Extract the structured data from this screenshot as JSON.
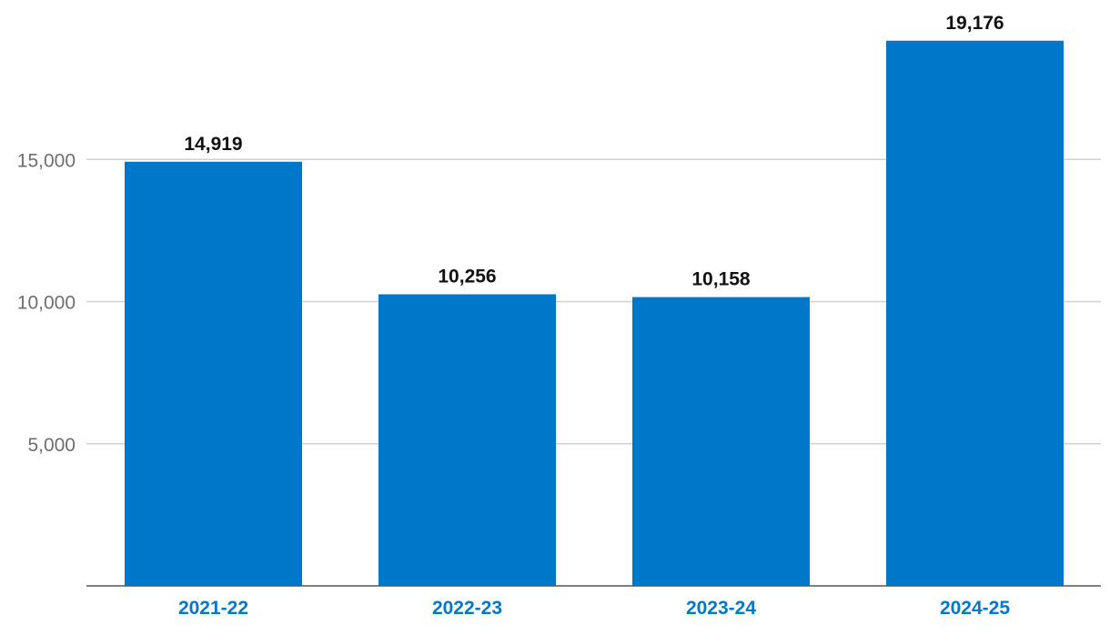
{
  "chart_data": {
    "type": "bar",
    "title": "",
    "xlabel": "",
    "ylabel": "",
    "categories": [
      "2021-22",
      "2022-23",
      "2023-24",
      "2024-25"
    ],
    "values": [
      14919,
      10256,
      10158,
      19176
    ],
    "value_labels": [
      "14,919",
      "10,256",
      "10,158",
      "19,176"
    ],
    "yticks": [
      5000,
      10000,
      15000
    ],
    "ytick_labels": [
      "5,000",
      "10,000",
      "15,000"
    ],
    "ylim": [
      0,
      20000
    ],
    "grid": true,
    "legend": "none"
  },
  "colors": {
    "bar": "#0077c8",
    "category_label": "#0077c8",
    "value_label": "#111111",
    "tick_label": "#6e6e6e",
    "gridline": "#d0d0d0",
    "axis": "#555555"
  }
}
